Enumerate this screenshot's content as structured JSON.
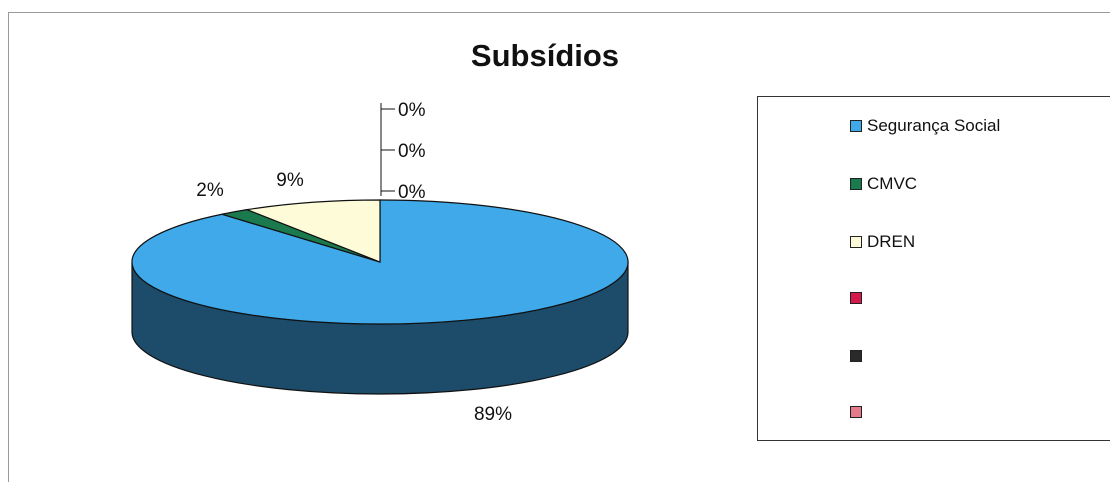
{
  "chart_data": {
    "type": "pie",
    "title": "Subsídios",
    "slices": [
      {
        "name": "Segurança Social",
        "value": 89,
        "label": "89%",
        "color": "#3fa9ea"
      },
      {
        "name": "CMVC",
        "value": 2,
        "label": "2%",
        "color": "#1b7a4d"
      },
      {
        "name": "DREN",
        "value": 9,
        "label": "9%",
        "color": "#fdfbd8"
      },
      {
        "name": "",
        "value": 0,
        "label": "0%",
        "color": "#d41a4a"
      },
      {
        "name": "",
        "value": 0,
        "label": "0%",
        "color": "#2a2a2a"
      },
      {
        "name": "",
        "value": 0,
        "label": "0%",
        "color": "#e57a8a"
      }
    ],
    "legend_position": "right",
    "style": "3d"
  }
}
